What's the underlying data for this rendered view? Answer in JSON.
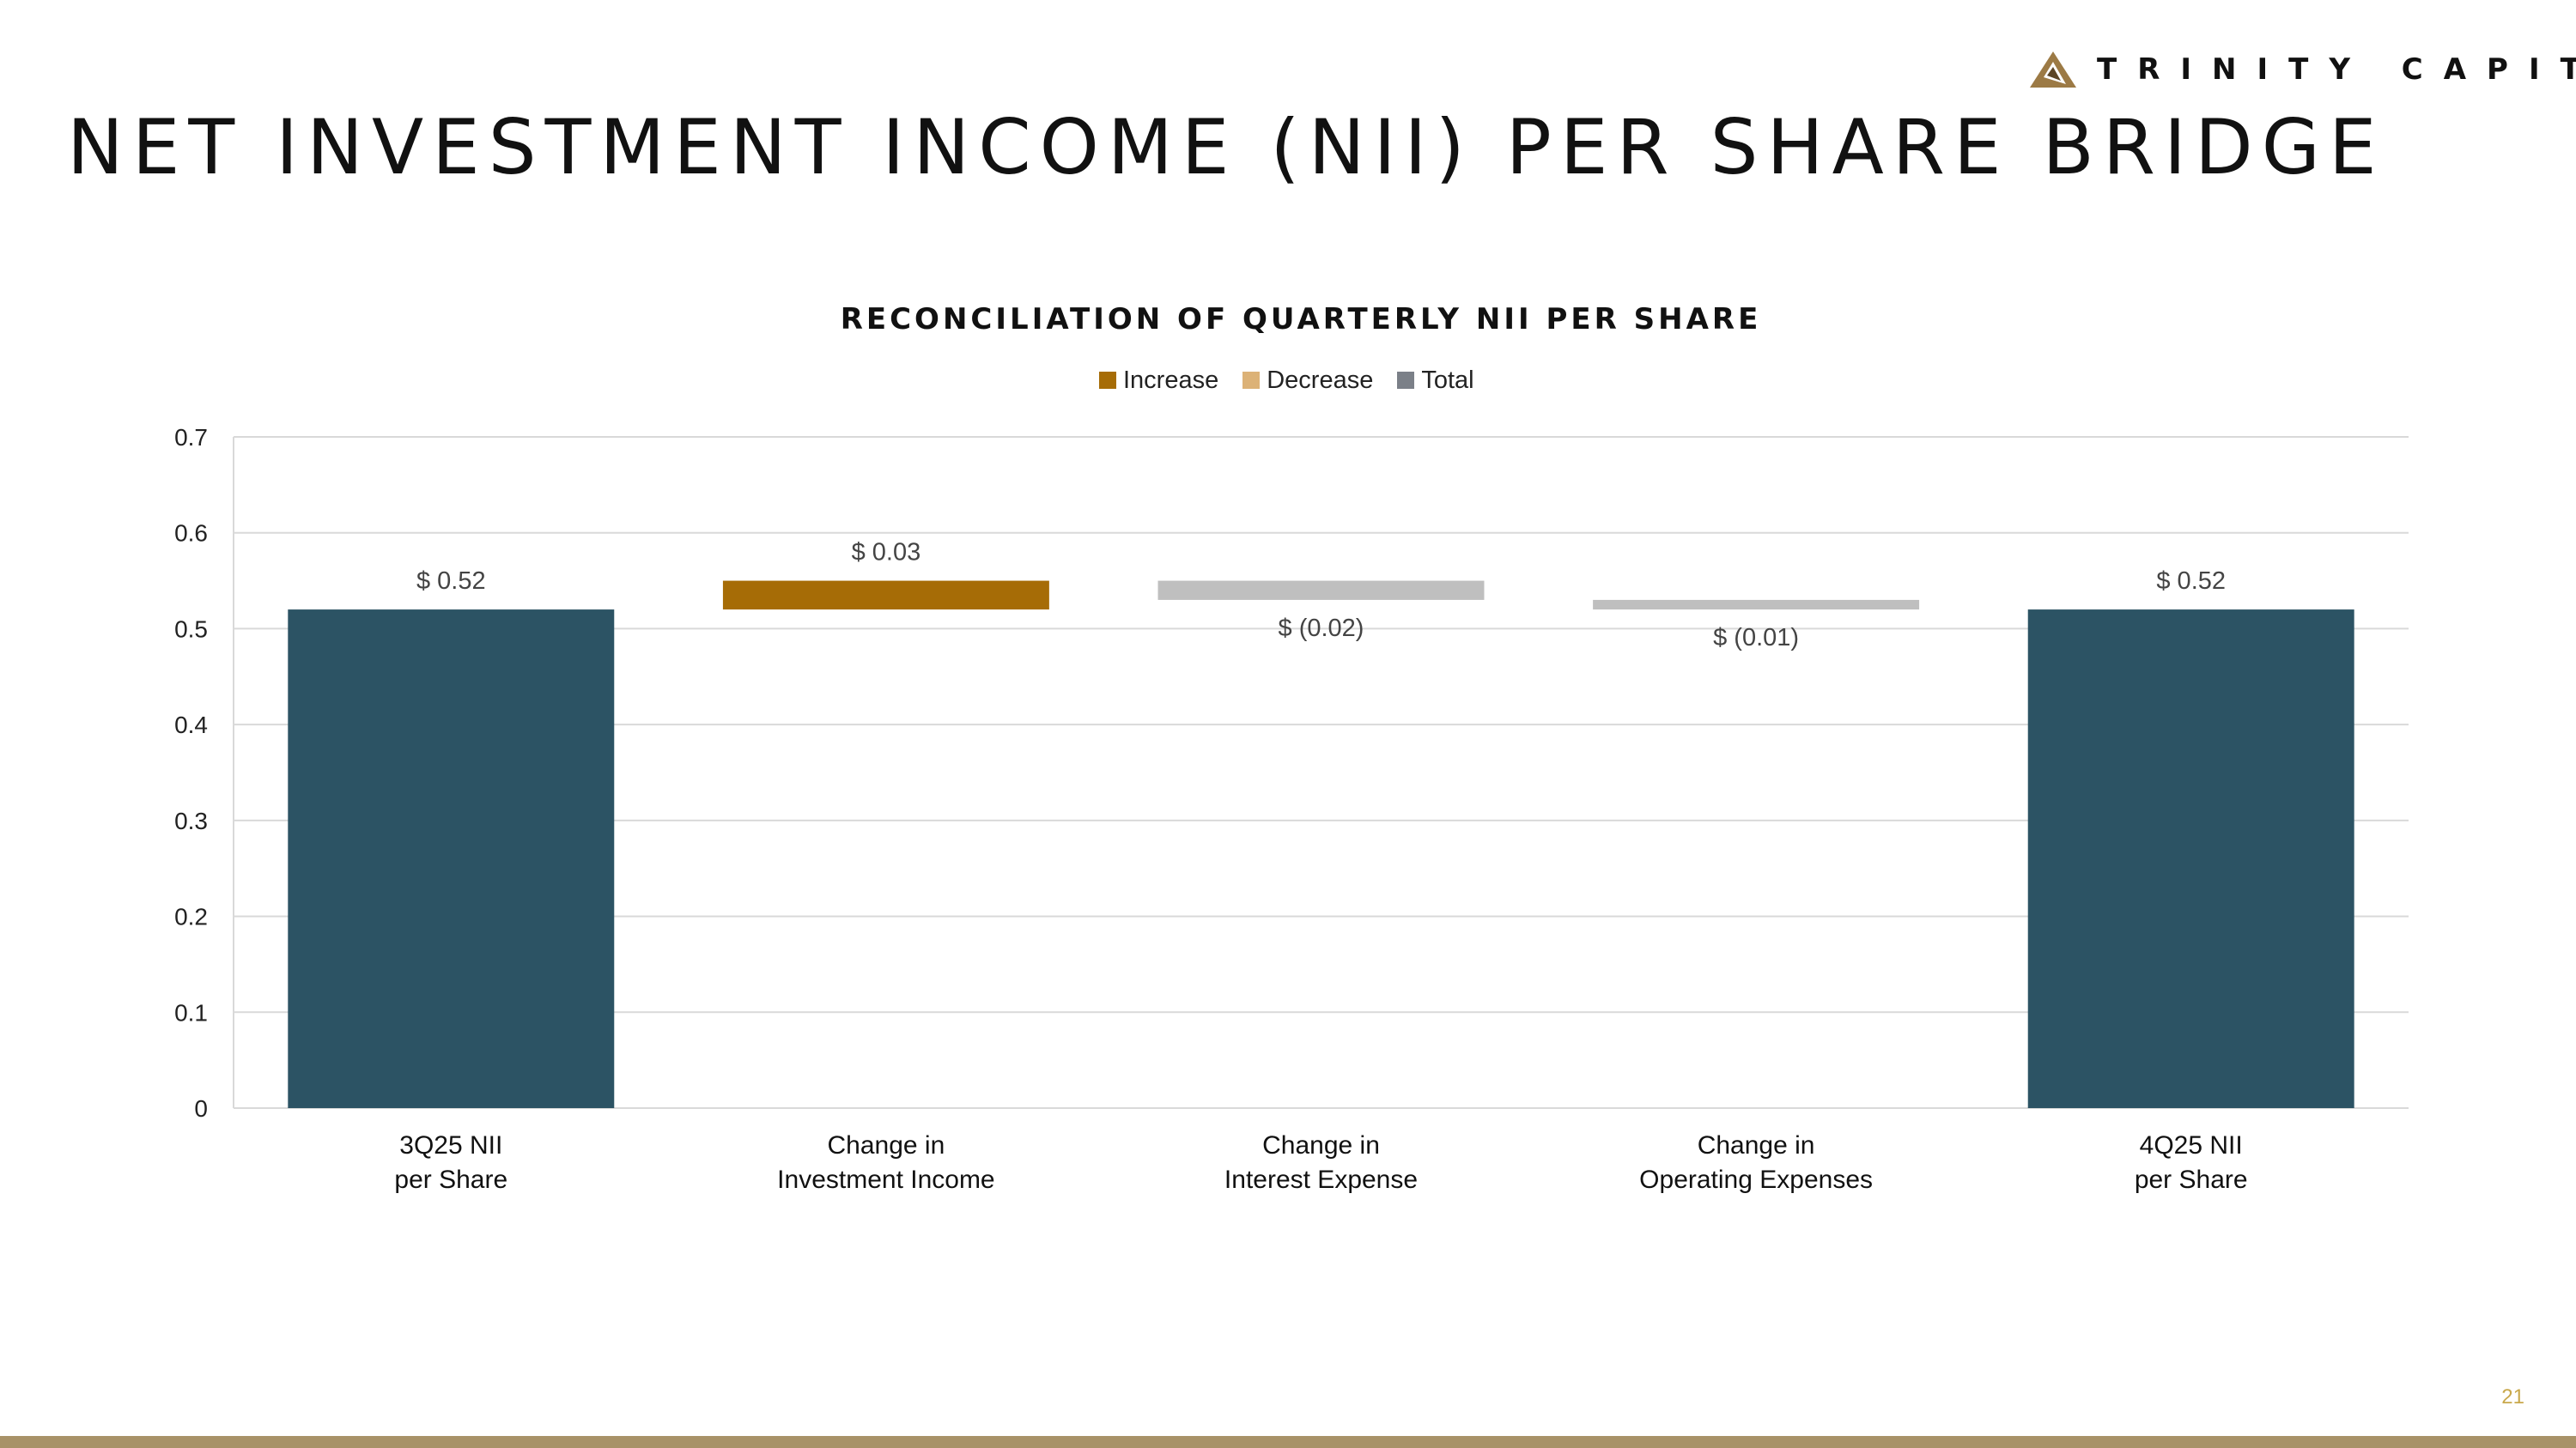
{
  "header": {
    "logo_text": "TRINITY CAPITAL",
    "title": "NET INVESTMENT INCOME (NII) PER SHARE BRIDGE"
  },
  "colors": {
    "total": "#2c5364",
    "increase": "#a66c06",
    "decrease_bar": "#bfbfbf",
    "decrease_legend": "#dcb277",
    "total_legend": "#7b8088",
    "footer": "#a89268",
    "page_number": "#c9a84c"
  },
  "chart_data": {
    "type": "bar",
    "subtype": "waterfall",
    "title": "RECONCILIATION OF QUARTERLY NII PER SHARE",
    "legend": [
      {
        "name": "Increase",
        "color": "#a66c06"
      },
      {
        "name": "Decrease",
        "color": "#dcb277"
      },
      {
        "name": "Total",
        "color": "#7b8088"
      }
    ],
    "legend_position": "top",
    "grid": true,
    "ylim": [
      0,
      0.7
    ],
    "yticks": [
      0,
      0.1,
      0.2,
      0.3,
      0.4,
      0.5,
      0.6,
      0.7
    ],
    "ytick_labels": [
      "0",
      "0.1",
      "0.2",
      "0.3",
      "0.4",
      "0.5",
      "0.6",
      "0.7"
    ],
    "bars": [
      {
        "label_lines": [
          "3Q25 NII",
          "per Share"
        ],
        "kind": "total",
        "start": 0,
        "end": 0.52,
        "data_label": "$ 0.52"
      },
      {
        "label_lines": [
          "Change in",
          "Investment Income"
        ],
        "kind": "increase",
        "start": 0.52,
        "end": 0.55,
        "data_label": "$ 0.03"
      },
      {
        "label_lines": [
          "Change in",
          "Interest Expense"
        ],
        "kind": "decrease",
        "start": 0.55,
        "end": 0.53,
        "data_label": "$ (0.02)"
      },
      {
        "label_lines": [
          "Change in",
          "Operating Expenses"
        ],
        "kind": "decrease",
        "start": 0.53,
        "end": 0.52,
        "data_label": "$ (0.01)"
      },
      {
        "label_lines": [
          "4Q25 NII",
          "per Share"
        ],
        "kind": "total",
        "start": 0,
        "end": 0.52,
        "data_label": "$ 0.52"
      }
    ]
  },
  "footer": {
    "page_number": "21"
  }
}
